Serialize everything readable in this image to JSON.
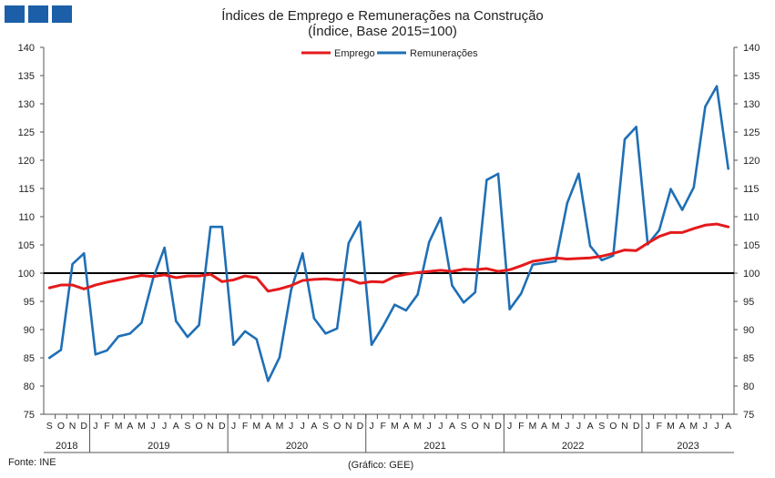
{
  "header": {
    "title": "Índices de Emprego e Remunerações na Construção",
    "subtitle": "(Índice, Base 2015=100)"
  },
  "footer": {
    "source": "Fonte: INE",
    "credit": "(Gráfico: GEE)"
  },
  "colors": {
    "brand": "#1c5fa8",
    "emprego": "#e41a1c",
    "remuneracoes": "#1f6fb5",
    "baseline": "#000000"
  },
  "chart_data": {
    "type": "line",
    "title": "Índices de Emprego e Remunerações na Construção",
    "subtitle": "(Índice, Base 2015=100)",
    "xlabel": "",
    "ylabel": "",
    "ylim": [
      75,
      140
    ],
    "yticks": [
      75,
      80,
      85,
      90,
      95,
      100,
      105,
      110,
      115,
      120,
      125,
      130,
      135,
      140
    ],
    "grid": false,
    "legend_position": "top-center",
    "secondary_axis_mirrors_primary": true,
    "reference_line": 100,
    "x_month_labels": [
      "S",
      "O",
      "N",
      "D",
      "J",
      "F",
      "M",
      "A",
      "M",
      "J",
      "J",
      "A",
      "S",
      "O",
      "N",
      "D",
      "J",
      "F",
      "M",
      "A",
      "M",
      "J",
      "J",
      "A",
      "S",
      "O",
      "N",
      "D",
      "J",
      "F",
      "M",
      "A",
      "M",
      "J",
      "J",
      "A",
      "S",
      "O",
      "N",
      "D",
      "J",
      "F",
      "M",
      "A",
      "M",
      "J",
      "J",
      "A",
      "S",
      "O",
      "N",
      "D",
      "J",
      "F",
      "M",
      "A",
      "M",
      "J",
      "J",
      "A"
    ],
    "year_groups": [
      {
        "year": "2018",
        "months": 4
      },
      {
        "year": "2019",
        "months": 12
      },
      {
        "year": "2020",
        "months": 12
      },
      {
        "year": "2021",
        "months": 12
      },
      {
        "year": "2022",
        "months": 12
      },
      {
        "year": "2023",
        "months": 8
      }
    ],
    "series": [
      {
        "name": "Emprego",
        "values": [
          97.4,
          97.9,
          97.9,
          97.2,
          97.9,
          98.4,
          98.8,
          99.2,
          99.6,
          99.4,
          99.7,
          99.2,
          99.5,
          99.5,
          99.8,
          98.5,
          98.8,
          99.5,
          99.2,
          96.8,
          97.2,
          97.8,
          98.7,
          98.9,
          99.0,
          98.8,
          98.9,
          98.2,
          98.5,
          98.4,
          99.4,
          99.8,
          100.1,
          100.3,
          100.5,
          100.3,
          100.7,
          100.6,
          100.8,
          100.3,
          100.6,
          101.3,
          102.1,
          102.4,
          102.7,
          102.5,
          102.6,
          102.7,
          103.0,
          103.5,
          104.1,
          104.0,
          105.3,
          106.5,
          107.2,
          107.2,
          107.9,
          108.5,
          108.7,
          108.2
        ]
      },
      {
        "name": "Remunerações",
        "values": [
          85.0,
          86.4,
          101.6,
          103.5,
          85.6,
          86.3,
          88.8,
          89.3,
          91.2,
          99.0,
          104.5,
          91.5,
          88.7,
          90.8,
          108.2,
          108.2,
          87.3,
          89.7,
          88.3,
          80.9,
          85.1,
          97.0,
          103.5,
          92.0,
          89.3,
          90.2,
          105.3,
          109.1,
          87.3,
          90.6,
          94.4,
          93.4,
          96.2,
          105.5,
          109.8,
          97.8,
          94.8,
          96.6,
          116.5,
          117.6,
          93.6,
          96.4,
          101.5,
          101.8,
          102.1,
          112.4,
          117.6,
          104.8,
          102.3,
          103.1,
          123.7,
          125.9,
          105.1,
          107.6,
          114.9,
          111.2,
          115.2,
          129.5,
          133.1,
          118.5
        ]
      }
    ]
  }
}
